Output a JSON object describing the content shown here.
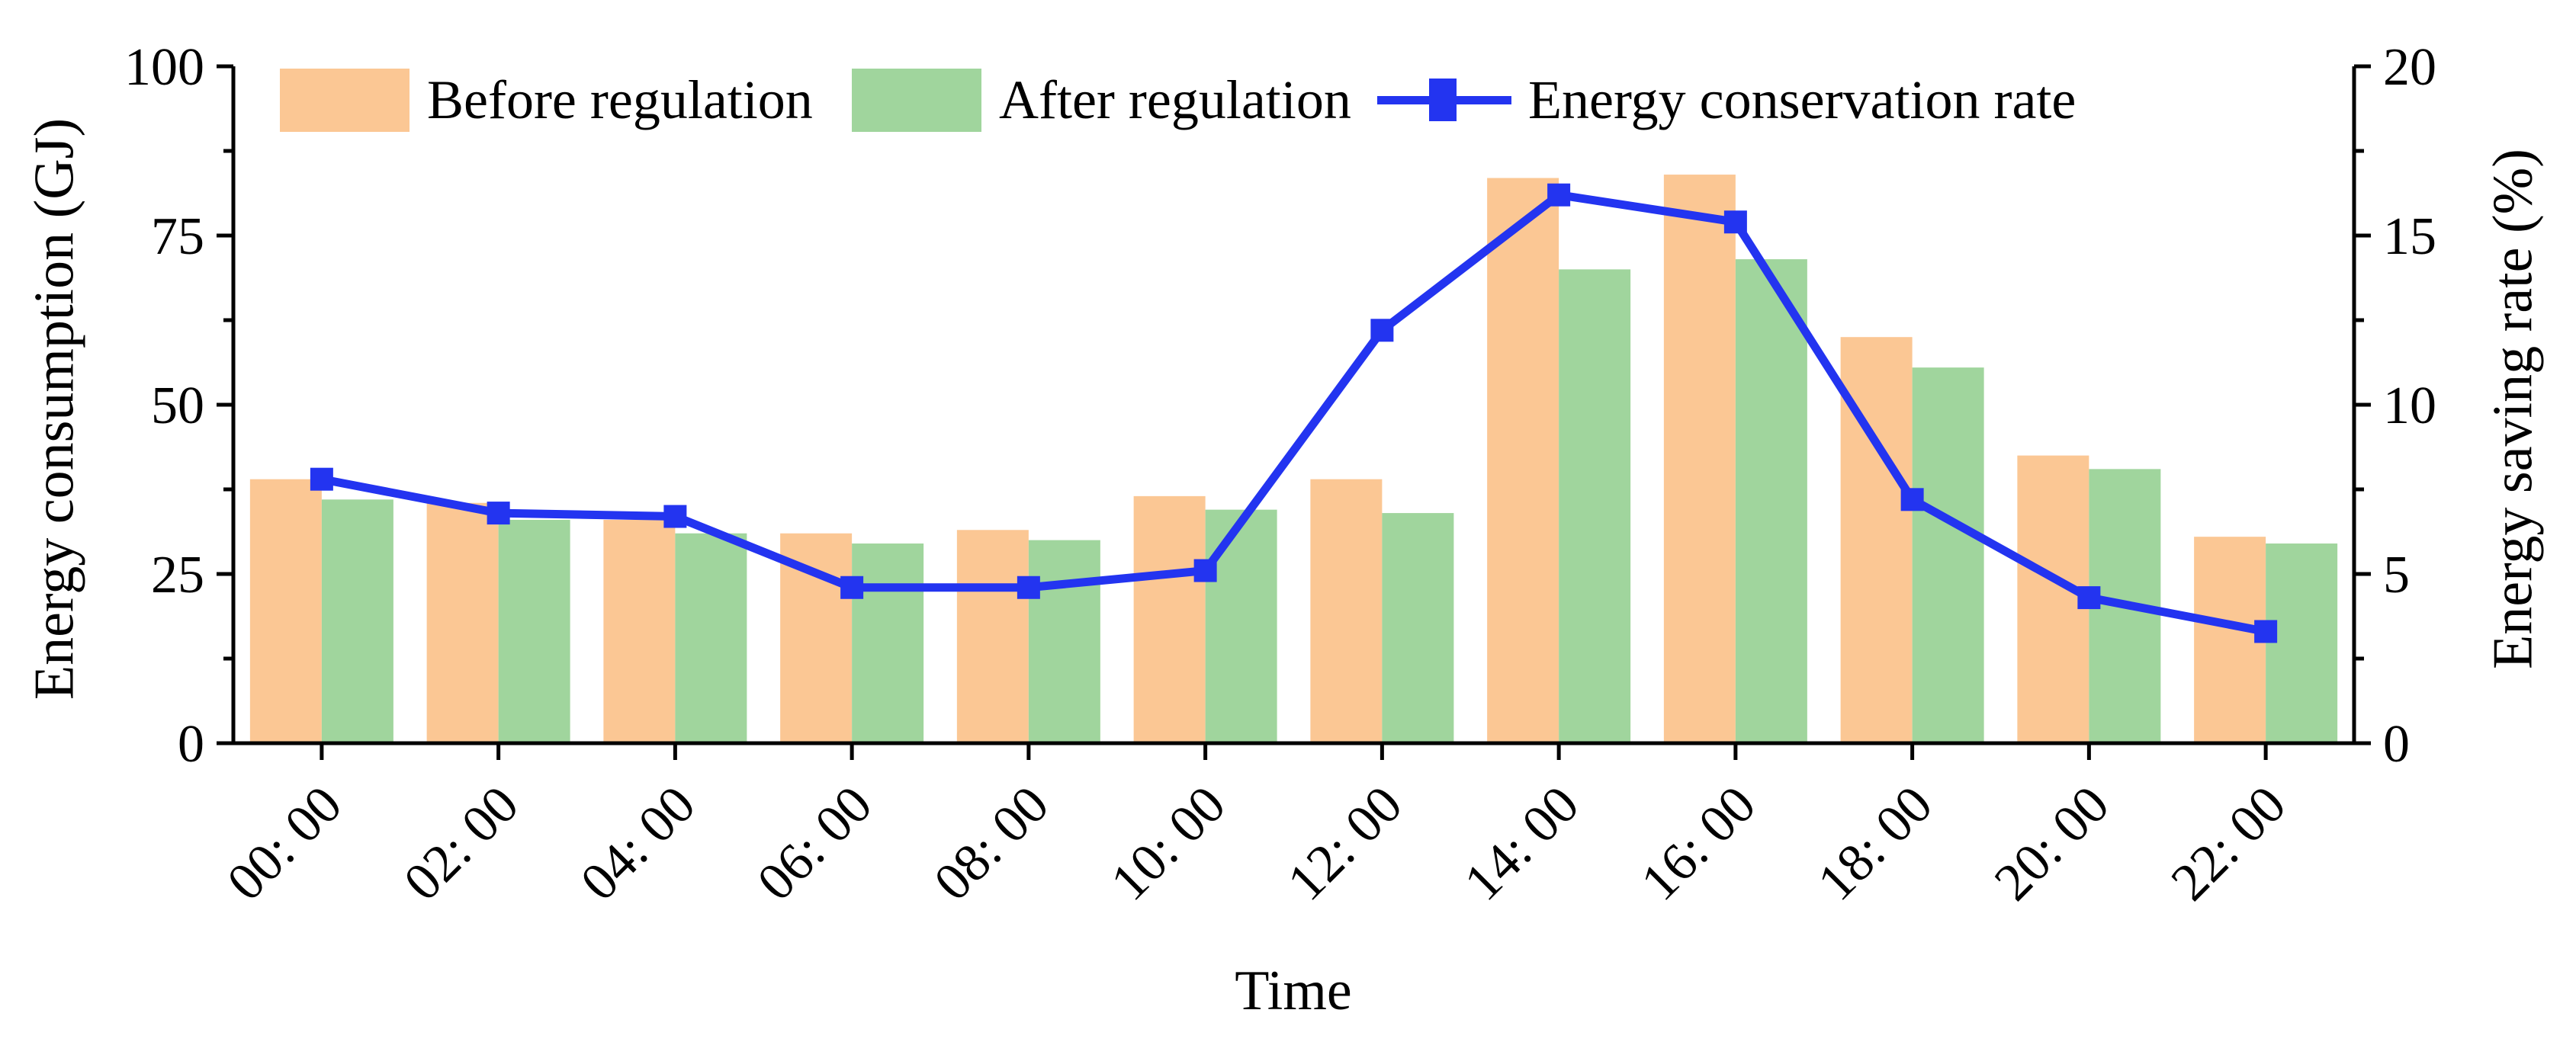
{
  "chart_data": {
    "type": "bar+line",
    "categories": [
      "00: 00",
      "02: 00",
      "04: 00",
      "06: 00",
      "08: 00",
      "10: 00",
      "12: 00",
      "14: 00",
      "16: 00",
      "18: 00",
      "20: 00",
      "22: 00"
    ],
    "series": [
      {
        "name": "Before regulation",
        "type": "bar",
        "axis": "left",
        "color": "#FBC794",
        "values": [
          39,
          35.5,
          33,
          31,
          31.5,
          36.5,
          39,
          83.5,
          84,
          60,
          42.5,
          30.5
        ]
      },
      {
        "name": "After regulation",
        "type": "bar",
        "axis": "left",
        "color": "#A0D59D",
        "values": [
          36,
          33,
          31,
          29.5,
          30,
          34.5,
          34,
          70,
          71.5,
          55.5,
          40.5,
          29.5
        ]
      },
      {
        "name": "Energy conservation rate",
        "type": "line",
        "axis": "right",
        "color": "#2334F0",
        "marker": "square",
        "values": [
          7.8,
          6.8,
          6.7,
          4.6,
          4.6,
          5.1,
          12.2,
          16.2,
          15.4,
          7.2,
          4.3,
          3.3
        ]
      }
    ],
    "axes": {
      "left": {
        "label": "Energy consumption (GJ)",
        "range": [
          0,
          100
        ],
        "major_ticks": [
          0,
          25,
          50,
          75,
          100
        ],
        "minor_ticks": [
          12.5,
          37.5,
          62.5,
          87.5
        ]
      },
      "right": {
        "label": "Energy saving rate (%)",
        "range": [
          0,
          20
        ],
        "major_ticks": [
          0,
          5,
          10,
          15,
          20
        ],
        "minor_ticks": [
          2.5,
          7.5,
          12.5,
          17.5
        ]
      },
      "x": {
        "label": "Time"
      }
    },
    "legend_position": "top",
    "grid": false,
    "axis_color": "#000000",
    "background": "#FFFFFF"
  }
}
